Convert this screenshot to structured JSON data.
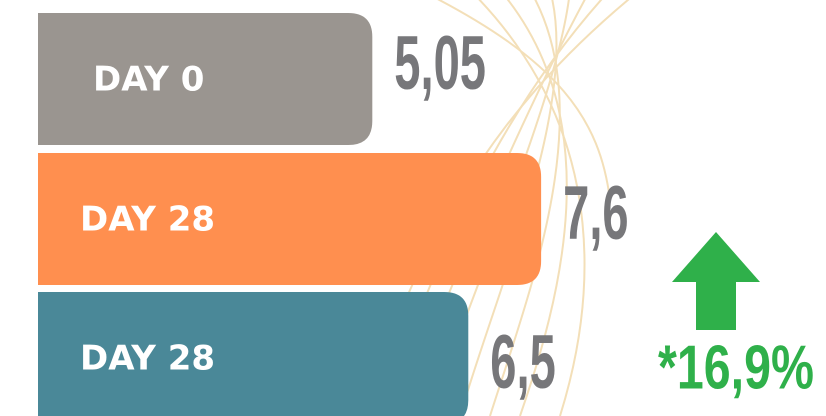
{
  "chart_data": {
    "type": "bar",
    "orientation": "horizontal",
    "categories": [
      "DAY 0",
      "DAY 28",
      "DAY 28"
    ],
    "values": [
      5.05,
      7.6,
      6.5
    ],
    "value_labels": [
      "5,05",
      "7,6",
      "6,5"
    ],
    "colors": [
      "#9a9590",
      "#ff8f4f",
      "#4a8898"
    ],
    "annotation": "*16,9%"
  }
}
